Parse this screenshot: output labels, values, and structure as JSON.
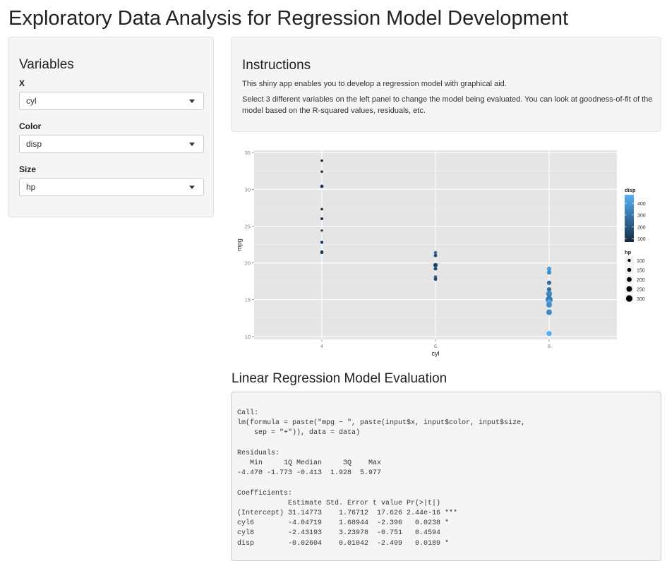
{
  "page": {
    "title": "Exploratory Data Analysis for Regression Model Development"
  },
  "sidebar": {
    "heading": "Variables",
    "fields": [
      {
        "label": "X",
        "value": "cyl"
      },
      {
        "label": "Color",
        "value": "disp"
      },
      {
        "label": "Size",
        "value": "hp"
      }
    ]
  },
  "instructions": {
    "heading": "Instructions",
    "p1": "This shiny app enables you to develop a regression model with graphical aid.",
    "p2": "Select 3 different variables on the left panel to change the model being evaluated. You can look at goodness-of-fit of the model based on the R-squared values, residuals, etc."
  },
  "chart_data": {
    "type": "scatter",
    "xlabel": "cyl",
    "ylabel": "mpg",
    "x_ticks": [
      "4",
      "6",
      "8"
    ],
    "y_ticks": [
      10,
      15,
      20,
      25,
      30,
      35
    ],
    "ylim": [
      9.6,
      35.3
    ],
    "grid": true,
    "legend_position": "right",
    "legend_color_title": "disp",
    "legend_color_ticks": [
      100,
      200,
      300,
      400
    ],
    "legend_size_title": "hp",
    "legend_size_ticks": [
      100,
      150,
      200,
      250,
      300
    ],
    "color_low": "#132B43",
    "color_high": "#56B1F7",
    "points": [
      {
        "x": "4",
        "y": 33.9,
        "disp": 71.1,
        "hp": 65
      },
      {
        "x": "4",
        "y": 32.4,
        "disp": 78.7,
        "hp": 66
      },
      {
        "x": "4",
        "y": 30.4,
        "disp": 75.7,
        "hp": 52
      },
      {
        "x": "4",
        "y": 30.4,
        "disp": 95.1,
        "hp": 113
      },
      {
        "x": "4",
        "y": 27.3,
        "disp": 79.0,
        "hp": 66
      },
      {
        "x": "4",
        "y": 26.0,
        "disp": 120.3,
        "hp": 91
      },
      {
        "x": "4",
        "y": 24.4,
        "disp": 146.7,
        "hp": 62
      },
      {
        "x": "4",
        "y": 22.8,
        "disp": 108.0,
        "hp": 93
      },
      {
        "x": "4",
        "y": 22.8,
        "disp": 140.8,
        "hp": 95
      },
      {
        "x": "4",
        "y": 21.5,
        "disp": 120.1,
        "hp": 97
      },
      {
        "x": "4",
        "y": 21.4,
        "disp": 121.0,
        "hp": 109
      },
      {
        "x": "6",
        "y": 21.4,
        "disp": 258.0,
        "hp": 110
      },
      {
        "x": "6",
        "y": 21.0,
        "disp": 160.0,
        "hp": 110
      },
      {
        "x": "6",
        "y": 21.0,
        "disp": 160.0,
        "hp": 110
      },
      {
        "x": "6",
        "y": 19.7,
        "disp": 145.0,
        "hp": 175
      },
      {
        "x": "6",
        "y": 19.2,
        "disp": 167.6,
        "hp": 123
      },
      {
        "x": "6",
        "y": 18.1,
        "disp": 225.0,
        "hp": 105
      },
      {
        "x": "6",
        "y": 17.8,
        "disp": 167.6,
        "hp": 123
      },
      {
        "x": "8",
        "y": 19.2,
        "disp": 400.0,
        "hp": 175
      },
      {
        "x": "8",
        "y": 18.7,
        "disp": 360.0,
        "hp": 175
      },
      {
        "x": "8",
        "y": 17.3,
        "disp": 275.8,
        "hp": 180
      },
      {
        "x": "8",
        "y": 16.4,
        "disp": 275.8,
        "hp": 180
      },
      {
        "x": "8",
        "y": 15.8,
        "disp": 351.0,
        "hp": 264
      },
      {
        "x": "8",
        "y": 15.5,
        "disp": 318.0,
        "hp": 150
      },
      {
        "x": "8",
        "y": 15.2,
        "disp": 275.8,
        "hp": 180
      },
      {
        "x": "8",
        "y": 15.2,
        "disp": 304.0,
        "hp": 150
      },
      {
        "x": "8",
        "y": 15.0,
        "disp": 301.0,
        "hp": 335
      },
      {
        "x": "8",
        "y": 14.7,
        "disp": 440.0,
        "hp": 230
      },
      {
        "x": "8",
        "y": 14.3,
        "disp": 360.0,
        "hp": 245
      },
      {
        "x": "8",
        "y": 13.3,
        "disp": 350.0,
        "hp": 245
      },
      {
        "x": "8",
        "y": 10.4,
        "disp": 472.0,
        "hp": 205
      },
      {
        "x": "8",
        "y": 10.4,
        "disp": 460.0,
        "hp": 215
      }
    ]
  },
  "evaluation": {
    "heading": "Linear Regression Model Evaluation",
    "output": "Call:\nlm(formula = paste(\"mpg ~ \", paste(input$x, input$color, input$size,\n    sep = \"+\")), data = data)\n\nResiduals:\n   Min     1Q Median     3Q    Max \n-4.470 -1.773 -0.413  1.928  5.977 \n\nCoefficients:\n            Estimate Std. Error t value Pr(>|t|)    \n(Intercept) 31.14773    1.76712  17.626 2.44e-16 ***\ncyl6        -4.04719    1.68944  -2.396   0.0238 *  \ncyl8        -2.43193    3.23978  -0.751   0.4594    \ndisp        -0.02604    0.01042  -2.499   0.0189 *  "
  }
}
